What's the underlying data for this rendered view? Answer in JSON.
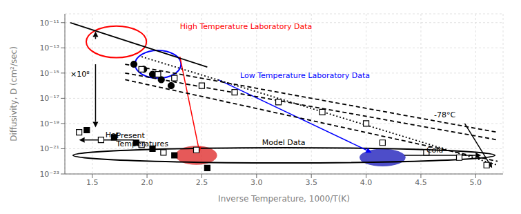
{
  "chart_data": {
    "type": "scatter",
    "xlabel": "Inverse Temperature, 1000/T(K)",
    "ylabel": "Diffusivity, D (cm²/sec)",
    "log": "y",
    "xlim": [
      1.25,
      5.25
    ],
    "ylim": [
      1e-23,
      5e-11
    ],
    "xticks": [
      1.5,
      {
        "value": 2,
        "label": "2.0"
      },
      2.5,
      {
        "value": 3,
        "label": "3.0"
      },
      3.5,
      {
        "value": 4,
        "label": "4.0"
      },
      4.5,
      {
        "value": 5,
        "label": "5.0"
      }
    ],
    "yticks": [
      {
        "value": 1e-23,
        "label": "10⁻²³"
      },
      {
        "value": 1e-21,
        "label": "10⁻²¹"
      },
      {
        "value": 1e-19,
        "label": "10⁻¹⁹"
      },
      {
        "value": 1e-17,
        "label": "10⁻¹⁷"
      },
      {
        "value": 1e-15,
        "label": "10⁻¹⁵"
      },
      {
        "value": 1e-13,
        "label": "10⁻¹³"
      },
      {
        "value": 1e-11,
        "label": "10⁻¹¹"
      }
    ],
    "series": [
      {
        "type": "line",
        "line_style": "solid",
        "color": "black",
        "x": [
          1.3,
          2.55
        ],
        "values": [
          1e-11,
          3e-15
        ]
      },
      {
        "type": "line",
        "line_style": "dotted",
        "color": "black",
        "x": [
          1.95,
          5.2
        ],
        "values": [
          2e-14,
          5e-23
        ]
      },
      {
        "type": "line",
        "line_style": "dashed",
        "color": "black",
        "x": [
          1.8,
          5.2
        ],
        "values": [
          5e-15,
          2e-20
        ]
      },
      {
        "type": "line",
        "line_style": "dashed",
        "color": "black",
        "x": [
          1.8,
          5.2
        ],
        "values": [
          1e-15,
          5e-21
        ]
      },
      {
        "type": "line",
        "line_style": "dashed",
        "color": "black",
        "x": [
          1.8,
          5.2
        ],
        "values": [
          3e-16,
          1e-22
        ]
      },
      {
        "type": "scatter",
        "marker": "circle",
        "color": "black",
        "x": [
          1.88,
          1.97,
          2.05,
          2.13,
          2.22
        ],
        "values": [
          5e-15,
          2e-15,
          8e-16,
          3e-16,
          1e-16
        ]
      },
      {
        "type": "scatter",
        "marker": "open_square",
        "color": "black",
        "x": [
          1.95,
          2.1,
          2.25,
          2.5,
          2.8,
          3.2,
          3.6,
          4.0
        ],
        "values": [
          2e-15,
          8e-16,
          4e-16,
          1e-16,
          3e-17,
          5e-18,
          8e-19,
          1e-19
        ]
      },
      {
        "type": "scatter",
        "marker": "square",
        "color": "black",
        "x": [
          1.45,
          1.7,
          1.9,
          2.05,
          2.25,
          2.55
        ],
        "values": [
          3e-20,
          8e-21,
          3e-21,
          1e-21,
          3e-22,
          3e-23
        ]
      },
      {
        "type": "scatter",
        "marker": "open_square",
        "color": "black",
        "x": [
          1.38,
          1.58,
          1.95,
          2.15,
          2.45,
          4.15,
          4.55,
          4.85,
          5.1
        ],
        "values": [
          2e-20,
          5e-21,
          2e-21,
          5e-22,
          8e-22,
          3e-21,
          5e-22,
          2e-22,
          5e-23
        ]
      }
    ],
    "blobs": [
      {
        "x": 2.45,
        "y": 3e-22,
        "width": 0.38,
        "height_decades": 1.5,
        "color": "#e03030"
      },
      {
        "x": 4.15,
        "y": 2e-22,
        "width": 0.42,
        "height_decades": 1.4,
        "color": "#2020bb"
      }
    ],
    "ellipses": [
      {
        "x": 1.72,
        "y": 3e-13,
        "width": 0.55,
        "height_decades": 2.5,
        "color": "red"
      },
      {
        "x": 2.1,
        "y": 5e-15,
        "width": 0.42,
        "height_decades": 2.2,
        "color": "blue"
      },
      {
        "x": 3.25,
        "y": 3e-22,
        "width": 3.85,
        "height_decades": 1.2,
        "color": "black"
      }
    ],
    "arrows": [
      {
        "x1": 1.53,
        "y1": 5e-13,
        "x2": 1.53,
        "y2": 2e-12,
        "color": "black"
      },
      {
        "x1": 1.53,
        "y1": 5e-15,
        "x2": 1.53,
        "y2": 5e-20,
        "color": "black"
      },
      {
        "x1": 2.3,
        "y1": 2e-14,
        "x2": 2.48,
        "y2": 5e-22,
        "color": "red"
      },
      {
        "x1": 2.65,
        "y1": 3e-16,
        "x2": 4.05,
        "y2": 5e-22,
        "color": "blue"
      },
      {
        "x1": 1.88,
        "y1": 5e-21,
        "x2": 1.38,
        "y2": 5e-21,
        "color": "black"
      },
      {
        "x1": 4.35,
        "y1": 3e-22,
        "x2": 5.05,
        "y2": 3e-22,
        "color": "black"
      },
      {
        "x1": 4.9,
        "y1": 1e-19,
        "x2": 5.15,
        "y2": 3e-23,
        "color": "black"
      }
    ],
    "annotations": [
      {
        "text": "×10⁸",
        "x": 1.3,
        "y": 5e-16,
        "color": "black"
      },
      {
        "text": "High Temperature Laboratory Data",
        "x": 2.3,
        "y": 3e-12,
        "color": "red"
      },
      {
        "text": "Low Temperature Laboratory Data",
        "x": 2.85,
        "y": 4e-16,
        "color": "blue"
      },
      {
        "text": "Model Data",
        "x": 3.05,
        "y": 2e-21,
        "color": "black"
      },
      {
        "text": "Hot",
        "x": 1.62,
        "y": 8e-21,
        "color": "black"
      },
      {
        "text": "Present\nTemperatures",
        "x": 1.72,
        "y": 1.5e-21,
        "color": "black"
      },
      {
        "text": "Cold",
        "x": 4.55,
        "y": 5e-22,
        "color": "black"
      },
      {
        "text": "-78°C",
        "x": 4.62,
        "y": 3e-19,
        "color": "black"
      }
    ]
  }
}
